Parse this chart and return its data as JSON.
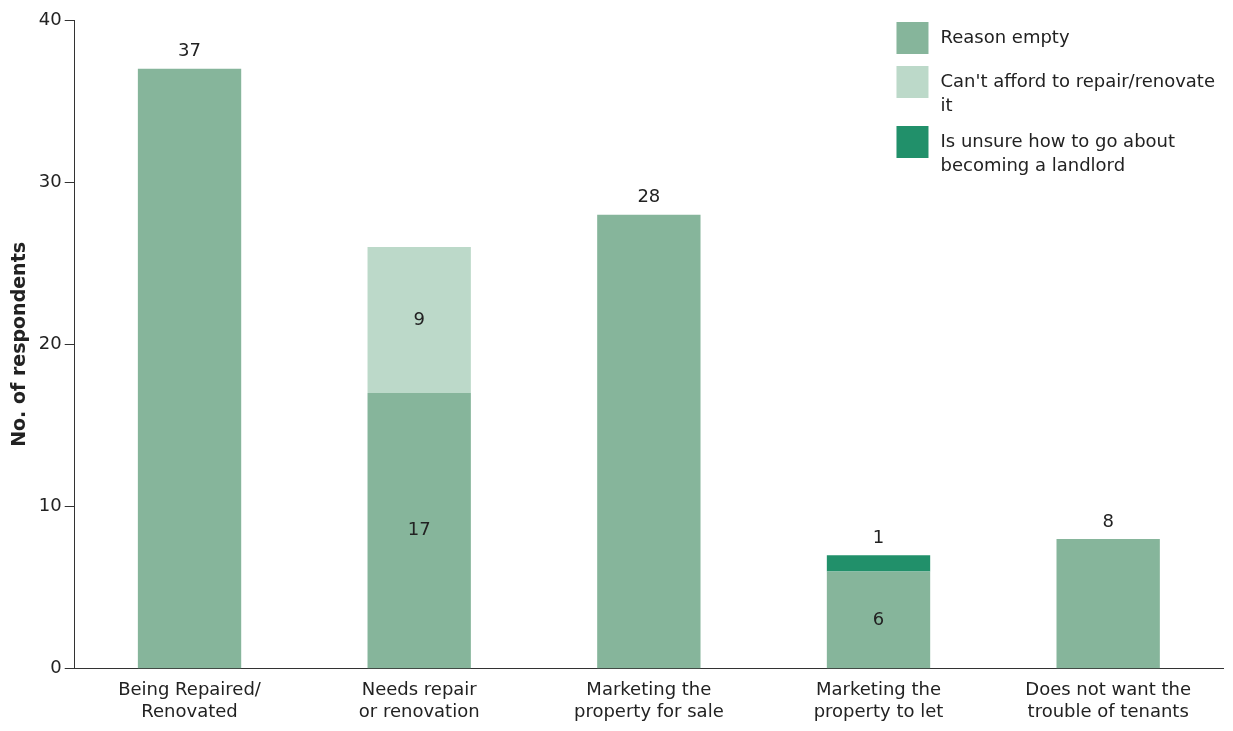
{
  "chart_data": {
    "type": "bar",
    "stacked": true,
    "ylabel": "No. of respondents",
    "categories": [
      "Being Repaired/\nRenovated",
      "Needs repair\nor renovation",
      "Marketing the\nproperty for sale",
      "Marketing the\nproperty to let",
      "Does not want the\ntrouble of tenants"
    ],
    "series": [
      {
        "name": "Reason empty",
        "color": "#86b59b",
        "values": [
          37,
          17,
          28,
          6,
          8
        ]
      },
      {
        "name": "Can't afford to repair/renovate it",
        "color": "#bcd9c9",
        "values": [
          null,
          9,
          null,
          null,
          null
        ]
      },
      {
        "name": "Is unsure how to go about becoming a landlord",
        "color": "#21906a",
        "values": [
          null,
          null,
          null,
          1,
          null
        ]
      }
    ],
    "ylim": [
      0,
      40
    ],
    "yticks": [
      0,
      10,
      20,
      30,
      40
    ],
    "grid": false,
    "legend": "top right",
    "data_labels": true
  }
}
